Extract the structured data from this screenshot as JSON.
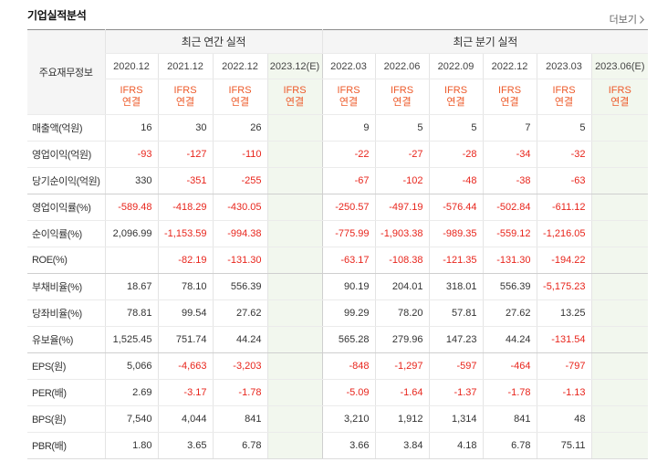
{
  "section_title": "기업실적분석",
  "more_link": {
    "label": "더보기",
    "icon": "chevron-right-icon"
  },
  "colors": {
    "negative": "#e8251c",
    "ifrs": "#ed5a2a",
    "estimate_bg": "#f2f7ee"
  },
  "table": {
    "corner_header": "주요재무정보",
    "annual_header": "최근 연간 실적",
    "quarterly_header": "최근 분기 실적",
    "periods": [
      {
        "date": "2020.12",
        "standard": "IFRS",
        "basis": "연결",
        "estimate": false
      },
      {
        "date": "2021.12",
        "standard": "IFRS",
        "basis": "연결",
        "estimate": false
      },
      {
        "date": "2022.12",
        "standard": "IFRS",
        "basis": "연결",
        "estimate": false
      },
      {
        "date": "2023.12(E)",
        "standard": "IFRS",
        "basis": "연결",
        "estimate": true
      },
      {
        "date": "2022.03",
        "standard": "IFRS",
        "basis": "연결",
        "estimate": false
      },
      {
        "date": "2022.06",
        "standard": "IFRS",
        "basis": "연결",
        "estimate": false
      },
      {
        "date": "2022.09",
        "standard": "IFRS",
        "basis": "연결",
        "estimate": false
      },
      {
        "date": "2022.12",
        "standard": "IFRS",
        "basis": "연결",
        "estimate": false
      },
      {
        "date": "2023.03",
        "standard": "IFRS",
        "basis": "연결",
        "estimate": false
      },
      {
        "date": "2023.06(E)",
        "standard": "IFRS",
        "basis": "연결",
        "estimate": true
      }
    ],
    "rows": [
      {
        "label": "매출액(억원)",
        "values": [
          "16",
          "30",
          "26",
          "",
          "9",
          "5",
          "5",
          "7",
          "5",
          ""
        ]
      },
      {
        "label": "영업이익(억원)",
        "values": [
          "-93",
          "-127",
          "-110",
          "",
          "-22",
          "-27",
          "-28",
          "-34",
          "-32",
          ""
        ]
      },
      {
        "label": "당기순이익(억원)",
        "values": [
          "330",
          "-351",
          "-255",
          "",
          "-67",
          "-102",
          "-48",
          "-38",
          "-63",
          ""
        ]
      },
      {
        "label": "영업이익률(%)",
        "values": [
          "-589.48",
          "-418.29",
          "-430.05",
          "",
          "-250.57",
          "-497.19",
          "-576.44",
          "-502.84",
          "-611.12",
          ""
        ]
      },
      {
        "label": "순이익률(%)",
        "values": [
          "2,096.99",
          "-1,153.59",
          "-994.38",
          "",
          "-775.99",
          "-1,903.38",
          "-989.35",
          "-559.12",
          "-1,216.05",
          ""
        ]
      },
      {
        "label": "ROE(%)",
        "values": [
          "",
          "-82.19",
          "-131.30",
          "",
          "-63.17",
          "-108.38",
          "-121.35",
          "-131.30",
          "-194.22",
          ""
        ]
      },
      {
        "label": "부채비율(%)",
        "values": [
          "18.67",
          "78.10",
          "556.39",
          "",
          "90.19",
          "204.01",
          "318.01",
          "556.39",
          "-5,175.23",
          ""
        ]
      },
      {
        "label": "당좌비율(%)",
        "values": [
          "78.81",
          "99.54",
          "27.62",
          "",
          "99.29",
          "78.20",
          "57.81",
          "27.62",
          "13.25",
          ""
        ]
      },
      {
        "label": "유보율(%)",
        "values": [
          "1,525.45",
          "751.74",
          "44.24",
          "",
          "565.28",
          "279.96",
          "147.23",
          "44.24",
          "-131.54",
          ""
        ]
      },
      {
        "label": "EPS(원)",
        "values": [
          "5,066",
          "-4,663",
          "-3,203",
          "",
          "-848",
          "-1,297",
          "-597",
          "-464",
          "-797",
          ""
        ]
      },
      {
        "label": "PER(배)",
        "values": [
          "2.69",
          "-3.17",
          "-1.78",
          "",
          "-5.09",
          "-1.64",
          "-1.37",
          "-1.78",
          "-1.13",
          ""
        ]
      },
      {
        "label": "BPS(원)",
        "values": [
          "7,540",
          "4,044",
          "841",
          "",
          "3,210",
          "1,912",
          "1,314",
          "841",
          "48",
          ""
        ]
      },
      {
        "label": "PBR(배)",
        "values": [
          "1.80",
          "3.65",
          "6.78",
          "",
          "3.66",
          "3.84",
          "4.18",
          "6.78",
          "75.11",
          ""
        ]
      }
    ]
  }
}
